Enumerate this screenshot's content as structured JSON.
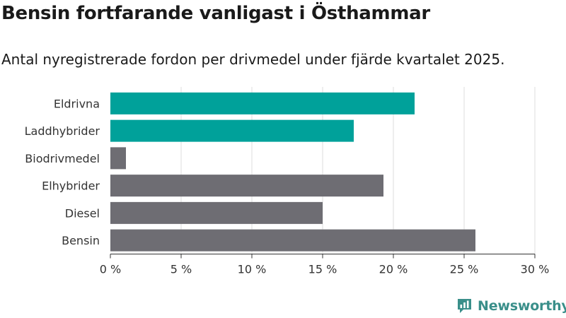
{
  "title": "Bensin fortfarande vanligast i Östhammar",
  "subtitle": "Antal nyregistrerade fordon per drivmedel under fjärde kvartalet 2025.",
  "brand": "Newsworthy",
  "colors": {
    "highlight": "#00a19a",
    "default": "#6e6d73",
    "grid": "#dddddd",
    "brand": "#3a8f8a"
  },
  "chart_data": {
    "type": "bar",
    "orientation": "horizontal",
    "categories": [
      "Eldrivna",
      "Laddhybrider",
      "Biodrivmedel",
      "Elhybrider",
      "Diesel",
      "Bensin"
    ],
    "values": [
      21.5,
      17.2,
      1.1,
      19.3,
      15.0,
      25.8
    ],
    "highlighted": [
      true,
      true,
      false,
      false,
      false,
      false
    ],
    "xlim": [
      0,
      30
    ],
    "xticks": [
      0,
      5,
      10,
      15,
      20,
      25,
      30
    ],
    "xtick_labels": [
      "0 %",
      "5 %",
      "10 %",
      "15 %",
      "20 %",
      "25 %",
      "30 %"
    ],
    "grid": true
  }
}
